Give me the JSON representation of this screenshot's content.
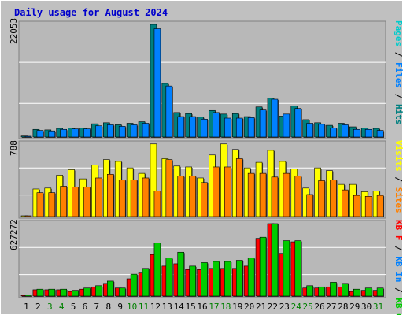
{
  "title": "Daily usage for August 2024",
  "colors": {
    "background": "#c0c0c0",
    "plot": "#b8b8b8",
    "grid": "#ffffff",
    "title": "#0000cc",
    "pages": "#00cccc",
    "files": "#0080ff",
    "hits": "#008080",
    "visits": "#ffff00",
    "sites": "#ff8000",
    "kbin": "#0080ff",
    "kbf": "#ff0000",
    "kbout": "#00cc00",
    "weekend_day": "#008000"
  },
  "right_labels": {
    "top": [
      {
        "text": "Pages",
        "color": "#00cccc"
      },
      {
        "text": " / ",
        "color": "#000000"
      },
      {
        "text": "Files",
        "color": "#0080ff"
      },
      {
        "text": " / ",
        "color": "#000000"
      },
      {
        "text": "Hits",
        "color": "#008080"
      }
    ],
    "middle": [
      {
        "text": "Visits",
        "color": "#ffff00"
      },
      {
        "text": " / ",
        "color": "#000000"
      },
      {
        "text": "Sites",
        "color": "#ff8000"
      }
    ],
    "bottom": [
      {
        "text": "KB F",
        "color": "#ff0000"
      },
      {
        "text": " / ",
        "color": "#000000"
      },
      {
        "text": "KB In",
        "color": "#0080ff"
      },
      {
        "text": " / ",
        "color": "#000000"
      },
      {
        "text": "KB Out",
        "color": "#00cc00"
      }
    ]
  },
  "chart_data": [
    {
      "type": "bar",
      "title": "Daily usage for August 2024",
      "ymax_label": "22053",
      "ylim": [
        0,
        22053
      ],
      "categories": [
        "1",
        "2",
        "3",
        "4",
        "5",
        "6",
        "7",
        "8",
        "9",
        "10",
        "11",
        "12",
        "13",
        "14",
        "15",
        "16",
        "17",
        "18",
        "19",
        "20",
        "21",
        "22",
        "23",
        "24",
        "25",
        "26",
        "27",
        "28",
        "29",
        "30",
        "31"
      ],
      "weekend_days": [
        3,
        4,
        10,
        11,
        17,
        18,
        24,
        25,
        31
      ],
      "series": [
        {
          "name": "Hits",
          "values": [
            200,
            1500,
            1400,
            1700,
            1800,
            1800,
            2600,
            2800,
            2400,
            2700,
            3000,
            22053,
            10500,
            4800,
            4600,
            3900,
            5200,
            4500,
            4600,
            4000,
            5900,
            7600,
            4100,
            6100,
            3400,
            2800,
            2300,
            2700,
            2000,
            1800,
            1700
          ]
        },
        {
          "name": "Files",
          "values": [
            150,
            1300,
            1200,
            1500,
            1600,
            1600,
            2200,
            2400,
            2100,
            2400,
            2700,
            21200,
            10000,
            4000,
            4000,
            3500,
            4800,
            3700,
            3700,
            3800,
            5300,
            7400,
            4500,
            5600,
            2700,
            2500,
            1800,
            2400,
            1500,
            1500,
            1300
          ]
        },
        {
          "name": "Pages",
          "values": [
            0,
            0,
            0,
            0,
            0,
            0,
            0,
            0,
            0,
            0,
            0,
            0,
            0,
            0,
            0,
            0,
            0,
            0,
            0,
            0,
            0,
            0,
            0,
            0,
            0,
            0,
            0,
            0,
            0,
            0,
            0
          ]
        }
      ]
    },
    {
      "type": "bar",
      "ymax_label": "788",
      "ylim": [
        0,
        788
      ],
      "categories": [
        "1",
        "2",
        "3",
        "4",
        "5",
        "6",
        "7",
        "8",
        "9",
        "10",
        "11",
        "12",
        "13",
        "14",
        "15",
        "16",
        "17",
        "18",
        "19",
        "20",
        "21",
        "22",
        "23",
        "24",
        "25",
        "26",
        "27",
        "28",
        "29",
        "30",
        "31"
      ],
      "series": [
        {
          "name": "Visits",
          "values": [
            0,
            300,
            310,
            450,
            510,
            410,
            560,
            620,
            600,
            530,
            470,
            790,
            630,
            550,
            540,
            420,
            670,
            790,
            730,
            530,
            590,
            720,
            600,
            520,
            310,
            530,
            500,
            350,
            350,
            270,
            280
          ]
        },
        {
          "name": "Sites",
          "values": [
            0,
            260,
            260,
            330,
            320,
            320,
            420,
            460,
            400,
            400,
            420,
            280,
            620,
            440,
            440,
            370,
            540,
            540,
            630,
            470,
            470,
            430,
            470,
            440,
            240,
            390,
            400,
            290,
            230,
            220,
            230
          ]
        }
      ]
    },
    {
      "type": "bar",
      "ymax_label": "627272",
      "ylim": [
        0,
        627272
      ],
      "categories": [
        "1",
        "2",
        "3",
        "4",
        "5",
        "6",
        "7",
        "8",
        "9",
        "10",
        "11",
        "12",
        "13",
        "14",
        "15",
        "16",
        "17",
        "18",
        "19",
        "20",
        "21",
        "22",
        "23",
        "24",
        "25",
        "26",
        "27",
        "28",
        "29",
        "30",
        "31"
      ],
      "series": [
        {
          "name": "KB F",
          "values": [
            0,
            55000,
            55000,
            55000,
            40000,
            60000,
            80000,
            110000,
            70000,
            150000,
            200000,
            360000,
            260000,
            280000,
            230000,
            230000,
            240000,
            240000,
            240000,
            260000,
            500000,
            627272,
            370000,
            470000,
            70000,
            70000,
            80000,
            80000,
            40000,
            50000,
            50000
          ]
        },
        {
          "name": "KB In",
          "values": [
            0,
            0,
            0,
            0,
            0,
            0,
            0,
            0,
            0,
            0,
            0,
            0,
            0,
            0,
            0,
            0,
            0,
            0,
            0,
            0,
            0,
            0,
            0,
            0,
            0,
            0,
            0,
            0,
            0,
            0,
            0
          ]
        },
        {
          "name": "KB Out",
          "values": [
            10000,
            60000,
            60000,
            60000,
            50000,
            70000,
            90000,
            130000,
            70000,
            190000,
            240000,
            460000,
            330000,
            380000,
            260000,
            290000,
            300000,
            300000,
            310000,
            330000,
            510000,
            627272,
            480000,
            480000,
            90000,
            80000,
            120000,
            110000,
            60000,
            70000,
            70000
          ]
        }
      ]
    }
  ]
}
